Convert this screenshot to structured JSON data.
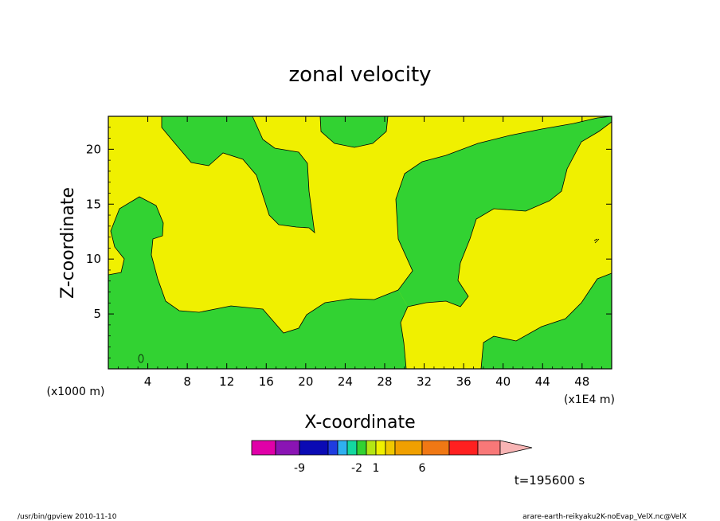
{
  "chart_data": {
    "type": "heatmap",
    "title": "zonal velocity",
    "xlabel": "X-coordinate",
    "ylabel": "Z-coordinate",
    "x_unit_left": "(x1000 m)",
    "x_unit_right": "(x1E4 m)",
    "xlim": [
      0,
      51
    ],
    "ylim": [
      0,
      23
    ],
    "x_ticks": [
      4,
      8,
      12,
      16,
      20,
      24,
      28,
      32,
      36,
      40,
      44,
      48
    ],
    "y_ticks": [
      5,
      10,
      15,
      20
    ],
    "time_label": "t=195600 s",
    "colorbar": {
      "tick_labels": [
        {
          "value": "-9",
          "index": 1
        },
        {
          "value": "-2",
          "index": 5
        },
        {
          "value": "1",
          "index": 7
        },
        {
          "value": "6",
          "index": 10
        }
      ],
      "colors": [
        "#e000a8",
        "#8a14b4",
        "#0a0ab4",
        "#1f3ce0",
        "#2fb0f0",
        "#14d8a0",
        "#32d232",
        "#b4e614",
        "#f0f000",
        "#f0c800",
        "#f0a000",
        "#f07814",
        "#ff2020",
        "#f87878",
        "#f8b4b4"
      ]
    },
    "fill_colors": {
      "yellow": "#f0f000",
      "green": "#32d232"
    }
  },
  "footer": {
    "left": "/usr/bin/gpview 2010-11-10",
    "right": "arare-earth-reikyaku2K-noEvap_VelX.nc@VelX"
  }
}
